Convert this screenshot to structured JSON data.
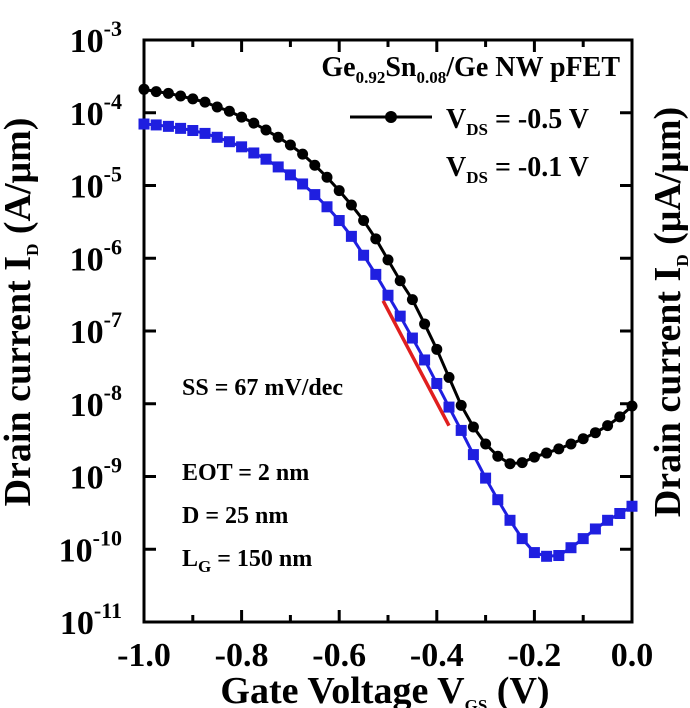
{
  "chart_data": {
    "type": "line",
    "title": "Ge0.92Sn0.08/Ge NW pFET",
    "title_parts": {
      "a": "Ge",
      "a_sub": "0.92",
      "b": "Sn",
      "b_sub": "0.08",
      "c": "/Ge NW pFET"
    },
    "xlabel": "Gate Voltage V",
    "xlabel_sub": "GS",
    "xlabel_unit": " (V)",
    "ylabel": "Drain current I",
    "ylabel_sub": "D",
    "ylabel_unit": " (A/μm)",
    "y2label": "Drain current I",
    "y2label_sub": "D",
    "y2label_unit": " (μA/μm)",
    "xlim": [
      -1.0,
      0.0
    ],
    "ylim": [
      1e-11,
      0.001
    ],
    "yscale": "log",
    "x_ticks": [
      "-1.0",
      "-0.8",
      "-0.6",
      "-0.4",
      "-0.2",
      "0.0"
    ],
    "y_ticks": [
      {
        "base": "10",
        "exp": "-3"
      },
      {
        "base": "10",
        "exp": "-4"
      },
      {
        "base": "10",
        "exp": "-5"
      },
      {
        "base": "10",
        "exp": "-6"
      },
      {
        "base": "10",
        "exp": "-7"
      },
      {
        "base": "10",
        "exp": "-8"
      },
      {
        "base": "10",
        "exp": "-9"
      },
      {
        "base": "10",
        "exp": "-10"
      },
      {
        "base": "10",
        "exp": "-11"
      }
    ],
    "legend_position": "top-right",
    "series": [
      {
        "name": "V_DS = -0.5 V",
        "name_parts": {
          "pre": "V",
          "sub": "DS",
          "post": " = -0.5 V"
        },
        "color": "#000000",
        "marker": "circle",
        "x": [
          -1.0,
          -0.975,
          -0.95,
          -0.925,
          -0.9,
          -0.875,
          -0.85,
          -0.825,
          -0.8,
          -0.775,
          -0.75,
          -0.725,
          -0.7,
          -0.675,
          -0.65,
          -0.625,
          -0.6,
          -0.575,
          -0.55,
          -0.525,
          -0.5,
          -0.475,
          -0.45,
          -0.425,
          -0.4,
          -0.375,
          -0.35,
          -0.325,
          -0.3,
          -0.275,
          -0.25,
          -0.225,
          -0.2,
          -0.175,
          -0.15,
          -0.125,
          -0.1,
          -0.075,
          -0.05,
          -0.025,
          0.0
        ],
        "y": [
          0.00021,
          0.000195,
          0.000185,
          0.00017,
          0.000155,
          0.00014,
          0.00012,
          0.000105,
          8.7e-05,
          7.2e-05,
          5.8e-05,
          4.6e-05,
          3.6e-05,
          2.7e-05,
          1.9e-05,
          1.3e-05,
          8.5e-06,
          5.4e-06,
          3.3e-06,
          1.85e-06,
          9.5e-07,
          4.9e-07,
          2.7e-07,
          1.25e-07,
          5.6e-08,
          2.3e-08,
          9.5e-09,
          4.8e-09,
          2.8e-09,
          1.9e-09,
          1.5e-09,
          1.55e-09,
          1.85e-09,
          2.1e-09,
          2.4e-09,
          2.8e-09,
          3.3e-09,
          4e-09,
          5e-09,
          6.6e-09,
          9.3e-09
        ]
      },
      {
        "name": "V_DS = -0.1 V",
        "name_parts": {
          "pre": "V",
          "sub": "DS",
          "post": " = -0.1 V"
        },
        "color": "#1f1fe0",
        "marker": "square",
        "x": [
          -1.0,
          -0.975,
          -0.95,
          -0.925,
          -0.9,
          -0.875,
          -0.85,
          -0.825,
          -0.8,
          -0.775,
          -0.75,
          -0.725,
          -0.7,
          -0.675,
          -0.65,
          -0.625,
          -0.6,
          -0.575,
          -0.55,
          -0.525,
          -0.5,
          -0.475,
          -0.45,
          -0.425,
          -0.4,
          -0.375,
          -0.35,
          -0.325,
          -0.3,
          -0.275,
          -0.25,
          -0.225,
          -0.2,
          -0.175,
          -0.15,
          -0.125,
          -0.1,
          -0.075,
          -0.05,
          -0.025,
          0.0
        ],
        "y": [
          7e-05,
          6.8e-05,
          6.5e-05,
          6.1e-05,
          5.7e-05,
          5.2e-05,
          4.6e-05,
          4e-05,
          3.4e-05,
          2.8e-05,
          2.3e-05,
          1.8e-05,
          1.4e-05,
          1.05e-05,
          7.5e-06,
          5.1e-06,
          3.3e-06,
          2e-06,
          1.1e-06,
          6e-07,
          3.1e-07,
          1.6e-07,
          8e-08,
          4e-08,
          1.9e-08,
          9e-09,
          4.3e-09,
          2e-09,
          9.5e-10,
          4.8e-10,
          2.5e-10,
          1.4e-10,
          9e-11,
          8e-11,
          8.2e-11,
          1.05e-10,
          1.4e-10,
          1.9e-10,
          2.5e-10,
          3.1e-10,
          3.9e-10
        ]
      }
    ],
    "annotations": {
      "ss_label": "SS = 67 mV/dec",
      "ss_color": "#e01f1f",
      "ss_line": {
        "x": [
          -0.51,
          -0.375
        ],
        "y": [
          2.6e-07,
          5e-09
        ]
      },
      "params": [
        {
          "pre": "EOT = 2 nm",
          "sub": "",
          "post": ""
        },
        {
          "pre": "D = 25 nm",
          "sub": "",
          "post": ""
        },
        {
          "pre": "L",
          "sub": "G",
          "post": " = 150 nm"
        }
      ]
    }
  }
}
